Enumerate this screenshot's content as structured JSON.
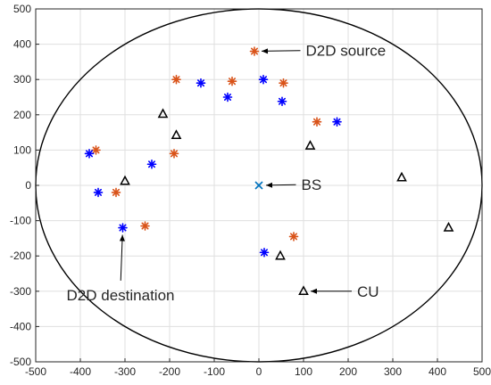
{
  "chart_data": {
    "type": "scatter",
    "title": "",
    "xlabel": "",
    "ylabel": "",
    "xlim": [
      -500,
      500
    ],
    "ylim": [
      -500,
      500
    ],
    "xticks": [
      -500,
      -400,
      -300,
      -200,
      -100,
      0,
      100,
      200,
      300,
      400,
      500
    ],
    "yticks": [
      -500,
      -400,
      -300,
      -200,
      -100,
      0,
      100,
      200,
      300,
      400,
      500
    ],
    "grid": true,
    "legend": "none",
    "cell_radius": 500,
    "series": [
      {
        "marker": "asterisk",
        "color": "#D95319",
        "points": [
          [
            -10,
            380
          ],
          [
            55,
            290
          ],
          [
            -60,
            295
          ],
          [
            -185,
            300
          ],
          [
            130,
            180
          ],
          [
            -365,
            100
          ],
          [
            -190,
            90
          ],
          [
            -320,
            -20
          ],
          [
            -255,
            -115
          ],
          [
            78,
            -145
          ]
        ]
      },
      {
        "marker": "asterisk",
        "color": "#0000FF",
        "points": [
          [
            10,
            300
          ],
          [
            -130,
            290
          ],
          [
            -70,
            250
          ],
          [
            52,
            238
          ],
          [
            175,
            180
          ],
          [
            -380,
            90
          ],
          [
            -240,
            60
          ],
          [
            -360,
            -20
          ],
          [
            -305,
            -120
          ],
          [
            12,
            -190
          ]
        ]
      },
      {
        "marker": "triangle",
        "color": "#000000",
        "points": [
          [
            -215,
            202
          ],
          [
            -185,
            142
          ],
          [
            115,
            112
          ],
          [
            -300,
            12
          ],
          [
            320,
            22
          ],
          [
            425,
            -120
          ],
          [
            48,
            -200
          ],
          [
            100,
            -300
          ]
        ]
      },
      {
        "marker": "x",
        "color": "#0072BD",
        "points": [
          [
            0,
            0
          ]
        ]
      }
    ],
    "annotations": [
      {
        "text": "D2D source",
        "point": [
          -10,
          380
        ],
        "text_at": [
          105,
          382
        ]
      },
      {
        "text": "BS",
        "point": [
          0,
          0
        ],
        "text_at": [
          95,
          2
        ]
      },
      {
        "text": "D2D destination",
        "point": [
          -305,
          -120
        ],
        "text_at": [
          -310,
          -285
        ]
      },
      {
        "text": "CU",
        "point": [
          100,
          -300
        ],
        "text_at": [
          220,
          -300
        ]
      }
    ]
  }
}
